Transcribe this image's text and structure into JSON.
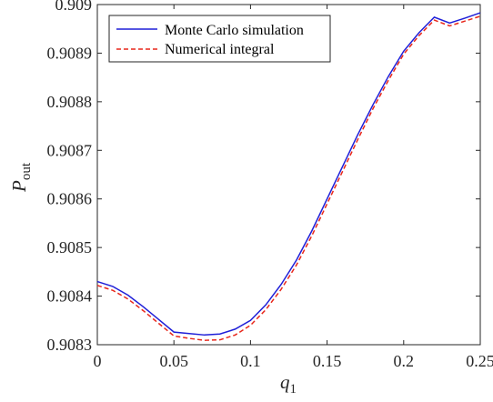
{
  "chart_data": {
    "type": "line",
    "xlabel_main": "q",
    "xlabel_sub": "1",
    "ylabel_main": "P",
    "ylabel_sub": "out",
    "xlim": [
      0,
      0.25
    ],
    "ylim": [
      0.9083,
      0.909
    ],
    "xticks": [
      0,
      0.05,
      0.1,
      0.15,
      0.2,
      0.25
    ],
    "xtick_labels": [
      "0",
      "0.05",
      "0.1",
      "0.15",
      "0.2",
      "0.25"
    ],
    "yticks": [
      0.9083,
      0.9084,
      0.9085,
      0.9086,
      0.9087,
      0.9088,
      0.9089,
      0.909
    ],
    "ytick_labels": [
      "0.9083",
      "0.9084",
      "0.9085",
      "0.9086",
      "0.9087",
      "0.9088",
      "0.9089",
      "0.909"
    ],
    "legend_position": "top-left",
    "grid": false,
    "x": [
      0,
      0.01,
      0.02,
      0.03,
      0.04,
      0.05,
      0.06,
      0.07,
      0.08,
      0.09,
      0.1,
      0.11,
      0.12,
      0.13,
      0.14,
      0.15,
      0.16,
      0.17,
      0.18,
      0.19,
      0.2,
      0.21,
      0.22,
      0.23,
      0.24,
      0.25
    ],
    "series": [
      {
        "name": "Monte Carlo simulation",
        "color": "#1f1fd8",
        "style": "solid",
        "values": [
          0.90843,
          0.90842,
          0.908402,
          0.908378,
          0.908352,
          0.908326,
          0.908323,
          0.90832,
          0.908322,
          0.908332,
          0.90835,
          0.908382,
          0.908424,
          0.908474,
          0.908534,
          0.9086,
          0.908666,
          0.908732,
          0.908794,
          0.908852,
          0.908904,
          0.908942,
          0.908974,
          0.908962,
          0.908972,
          0.908983
        ]
      },
      {
        "name": "Numerical integral",
        "color": "#e8261a",
        "style": "dashed",
        "values": [
          0.908422,
          0.908412,
          0.908394,
          0.90837,
          0.908344,
          0.908318,
          0.908313,
          0.908309,
          0.90831,
          0.90832,
          0.90834,
          0.908372,
          0.908414,
          0.908464,
          0.908524,
          0.90859,
          0.908656,
          0.908722,
          0.908786,
          0.908844,
          0.908898,
          0.908936,
          0.908968,
          0.908956,
          0.908966,
          0.908976
        ]
      }
    ]
  }
}
